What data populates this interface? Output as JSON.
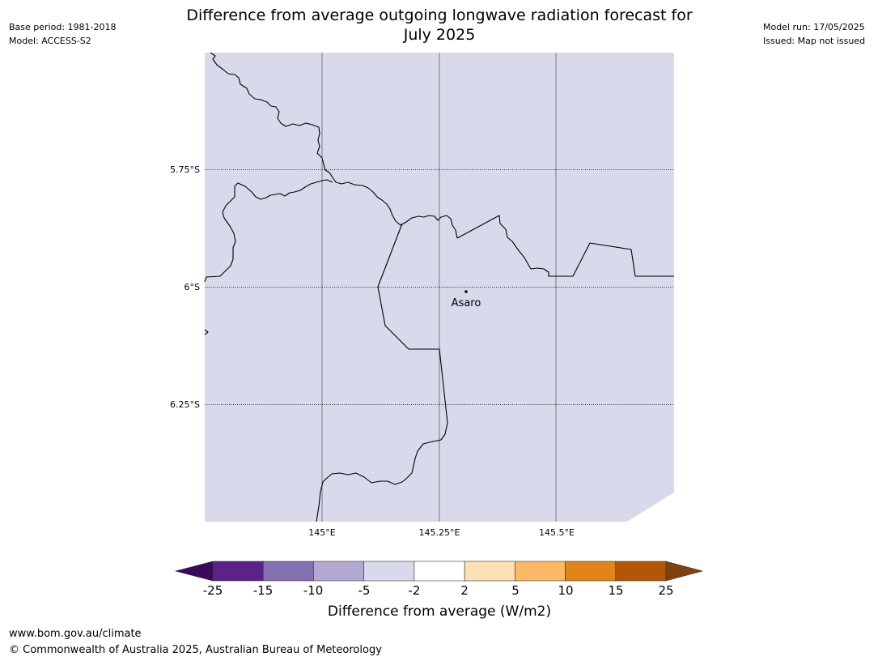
{
  "header": {
    "base_period": "Base period: 1981-2018",
    "model": "Model: ACCESS-S2",
    "title_line1": "Difference from average outgoing longwave radiation forecast for",
    "title_line2": "July 2025",
    "model_run": "Model run: 17/05/2025",
    "issued": "Issued: Map not issued"
  },
  "map": {
    "background_color": "#d8d9ea",
    "latitude_labels": [
      "5.75°S",
      "6°S",
      "6.25°S"
    ],
    "longitude_labels": [
      "145°E",
      "145.25°E",
      "145.5°E"
    ],
    "place": {
      "name": "Asaro"
    }
  },
  "colorbar": {
    "ticks": [
      "-25",
      "-15",
      "-10",
      "-5",
      "-2",
      "2",
      "5",
      "10",
      "15",
      "25"
    ],
    "label": "Difference from average (W/m2)",
    "colors": {
      "under": "#3a0b5a",
      "bins": [
        "#5b2388",
        "#8270b0",
        "#b2a8d1",
        "#d8d9ea",
        "#ffffff",
        "#fde0b6",
        "#fbb866",
        "#e18419",
        "#b45608"
      ],
      "over": "#80400f"
    }
  },
  "footer": {
    "url": "www.bom.gov.au/climate",
    "copyright": "© Commonwealth of Australia 2025, Australian Bureau of Meteorology"
  }
}
